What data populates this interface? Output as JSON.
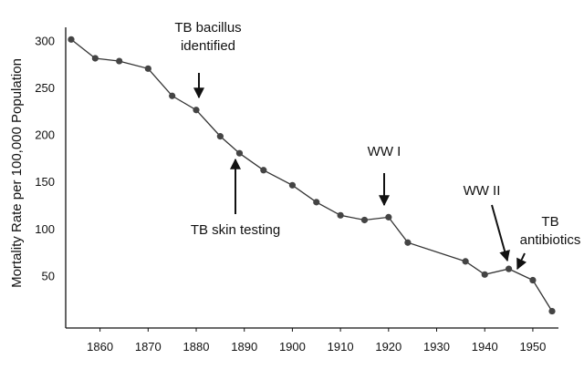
{
  "chart_data": {
    "type": "line",
    "title": "",
    "xlabel": "",
    "ylabel": "Mortality Rate per 100,000 Population",
    "xlim": [
      1854,
      1956
    ],
    "ylim": [
      0,
      305
    ],
    "grid": false,
    "x_ticks": [
      1860,
      1870,
      1880,
      1890,
      1900,
      1910,
      1920,
      1930,
      1940,
      1950
    ],
    "y_ticks": [
      50,
      100,
      150,
      200,
      250,
      300
    ],
    "x": [
      1854,
      1859,
      1864,
      1870,
      1875,
      1880,
      1885,
      1889,
      1894,
      1900,
      1905,
      1910,
      1915,
      1920,
      1924,
      1936,
      1940,
      1945,
      1950,
      1954
    ],
    "values": [
      302,
      282,
      279,
      271,
      242,
      227,
      199,
      181,
      163,
      147,
      129,
      115,
      110,
      113,
      86,
      66,
      52,
      58,
      46,
      13
    ],
    "annotations": [
      {
        "lines": [
          "TB bacillus",
          "identified"
        ],
        "x": 1882,
        "y": 227
      },
      {
        "lines": [
          "TB skin testing"
        ],
        "x": 1889,
        "y": 181
      },
      {
        "lines": [
          "WW I"
        ],
        "x": 1920,
        "y": 113
      },
      {
        "lines": [
          "WW II"
        ],
        "x": 1945,
        "y": 58
      },
      {
        "lines": [
          "TB",
          "antibiotics"
        ],
        "x": 1947,
        "y": 52
      }
    ]
  },
  "colors": {
    "line": "#333333",
    "point": "#444444",
    "axis": "#111111",
    "text": "#111111"
  }
}
